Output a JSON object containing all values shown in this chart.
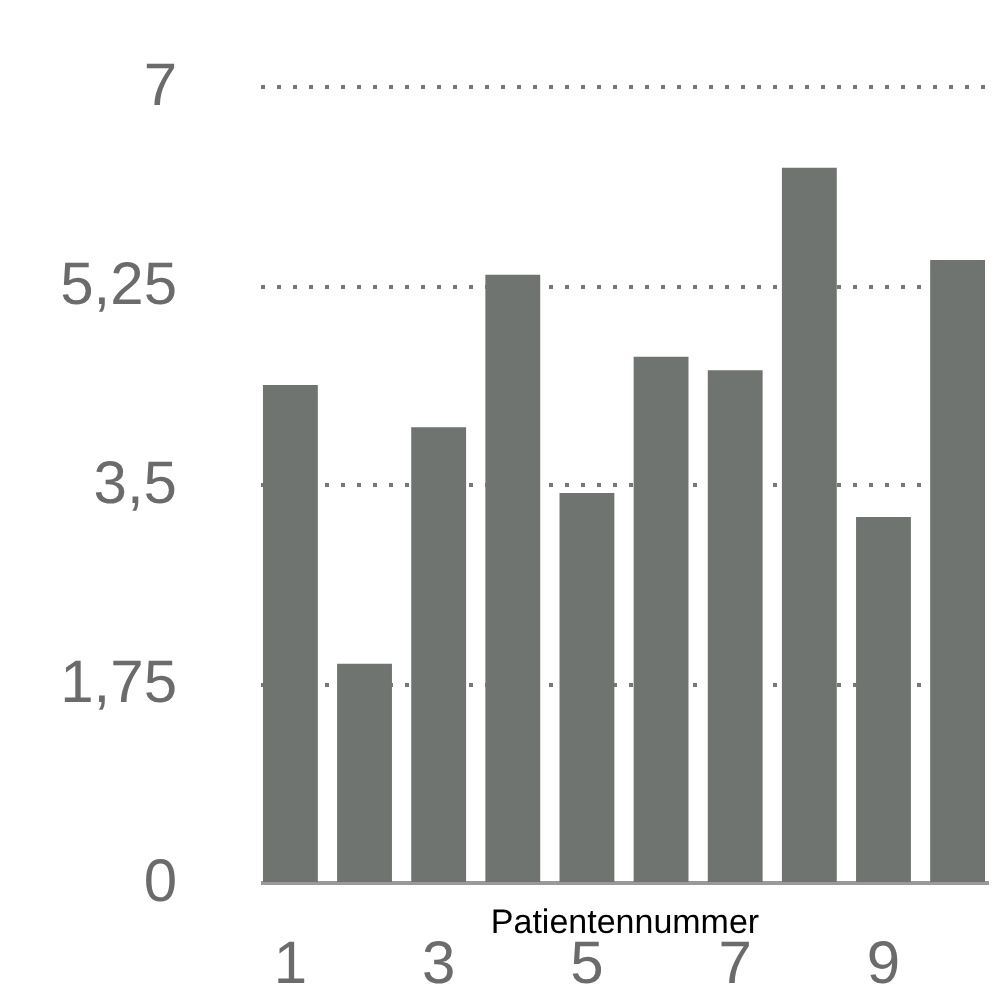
{
  "chart_data": {
    "type": "bar",
    "xlabel": "Patientennummer",
    "categories": [
      "1",
      null,
      "3",
      null,
      "5",
      null,
      "7",
      null,
      "9",
      null
    ],
    "values": [
      4.37,
      1.92,
      4.0,
      5.34,
      3.42,
      4.62,
      4.5,
      6.28,
      3.21,
      5.47
    ],
    "color": "#6f7470",
    "ylim": [
      0,
      7
    ],
    "yticks": [
      0,
      {
        "value": 1.75,
        "label": "1,75"
      },
      {
        "value": 3.5,
        "label": "3,5"
      },
      {
        "value": 5.25,
        "label": "5,25"
      },
      7
    ],
    "grid": "y"
  }
}
